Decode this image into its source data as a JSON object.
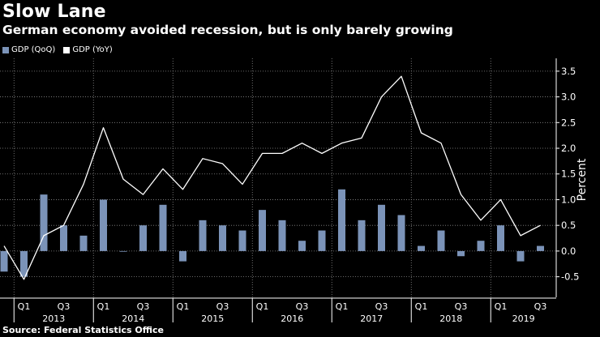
{
  "header": {
    "title": "Slow Lane",
    "subtitle": "German economy avoided recession, but is only barely growing"
  },
  "source": "Source: Federal Statistics Office",
  "colors": {
    "background": "#000000",
    "bar": "#7b93b8",
    "line": "#ffffff",
    "grid": "#8a8a8a"
  },
  "chart_data": {
    "type": "bar",
    "title": "Slow Lane",
    "subtitle": "German economy avoided recession, but is only barely growing",
    "ylabel": "Percent",
    "xlabel": "",
    "ylim": [
      -0.9,
      3.75
    ],
    "yticks": [
      -0.5,
      0.0,
      0.5,
      1.0,
      1.5,
      2.0,
      2.5,
      3.0,
      3.5
    ],
    "ytick_labels": [
      "-0.5",
      "0.0",
      "0.5",
      "1.0",
      "1.5",
      "2.0",
      "2.5",
      "3.0",
      "3.5"
    ],
    "grid": true,
    "legend_position": "top-left",
    "categories": [
      "2012 Q4",
      "2013 Q1",
      "2013 Q2",
      "2013 Q3",
      "2013 Q4",
      "2014 Q1",
      "2014 Q2",
      "2014 Q3",
      "2014 Q4",
      "2015 Q1",
      "2015 Q2",
      "2015 Q3",
      "2015 Q4",
      "2016 Q1",
      "2016 Q2",
      "2016 Q3",
      "2016 Q4",
      "2017 Q1",
      "2017 Q2",
      "2017 Q3",
      "2017 Q4",
      "2018 Q1",
      "2018 Q2",
      "2018 Q3",
      "2018 Q4",
      "2019 Q1",
      "2019 Q2",
      "2019 Q3"
    ],
    "series": [
      {
        "name": "GDP (QoQ)",
        "type": "bar",
        "values": [
          -0.4,
          -0.5,
          1.1,
          0.5,
          0.3,
          1.0,
          0.0,
          0.5,
          0.9,
          -0.2,
          0.6,
          0.5,
          0.4,
          0.8,
          0.6,
          0.2,
          0.4,
          1.2,
          0.6,
          0.9,
          0.7,
          0.1,
          0.4,
          -0.1,
          0.2,
          0.5,
          -0.2,
          0.1
        ]
      },
      {
        "name": "GDP (YoY)",
        "type": "line",
        "values": [
          0.1,
          -0.55,
          0.3,
          0.5,
          1.3,
          2.4,
          1.4,
          1.1,
          1.6,
          1.2,
          1.8,
          1.7,
          1.3,
          1.9,
          1.9,
          2.1,
          1.9,
          2.1,
          2.2,
          3.0,
          3.4,
          2.3,
          2.1,
          1.1,
          0.6,
          1.0,
          0.3,
          0.5
        ]
      }
    ],
    "quarter_ticks": [
      {
        "index": 1,
        "label": "Q1"
      },
      {
        "index": 3,
        "label": "Q3"
      },
      {
        "index": 5,
        "label": "Q1"
      },
      {
        "index": 7,
        "label": "Q3"
      },
      {
        "index": 9,
        "label": "Q1"
      },
      {
        "index": 11,
        "label": "Q3"
      },
      {
        "index": 13,
        "label": "Q1"
      },
      {
        "index": 15,
        "label": "Q3"
      },
      {
        "index": 17,
        "label": "Q1"
      },
      {
        "index": 19,
        "label": "Q3"
      },
      {
        "index": 21,
        "label": "Q1"
      },
      {
        "index": 23,
        "label": "Q3"
      },
      {
        "index": 25,
        "label": "Q1"
      },
      {
        "index": 27,
        "label": "Q3"
      }
    ],
    "years": [
      {
        "label": "2013",
        "start": 1,
        "end": 4
      },
      {
        "label": "2014",
        "start": 5,
        "end": 8
      },
      {
        "label": "2015",
        "start": 9,
        "end": 12
      },
      {
        "label": "2016",
        "start": 13,
        "end": 16
      },
      {
        "label": "2017",
        "start": 17,
        "end": 20
      },
      {
        "label": "2018",
        "start": 21,
        "end": 24
      },
      {
        "label": "2019",
        "start": 25,
        "end": 27
      }
    ]
  }
}
